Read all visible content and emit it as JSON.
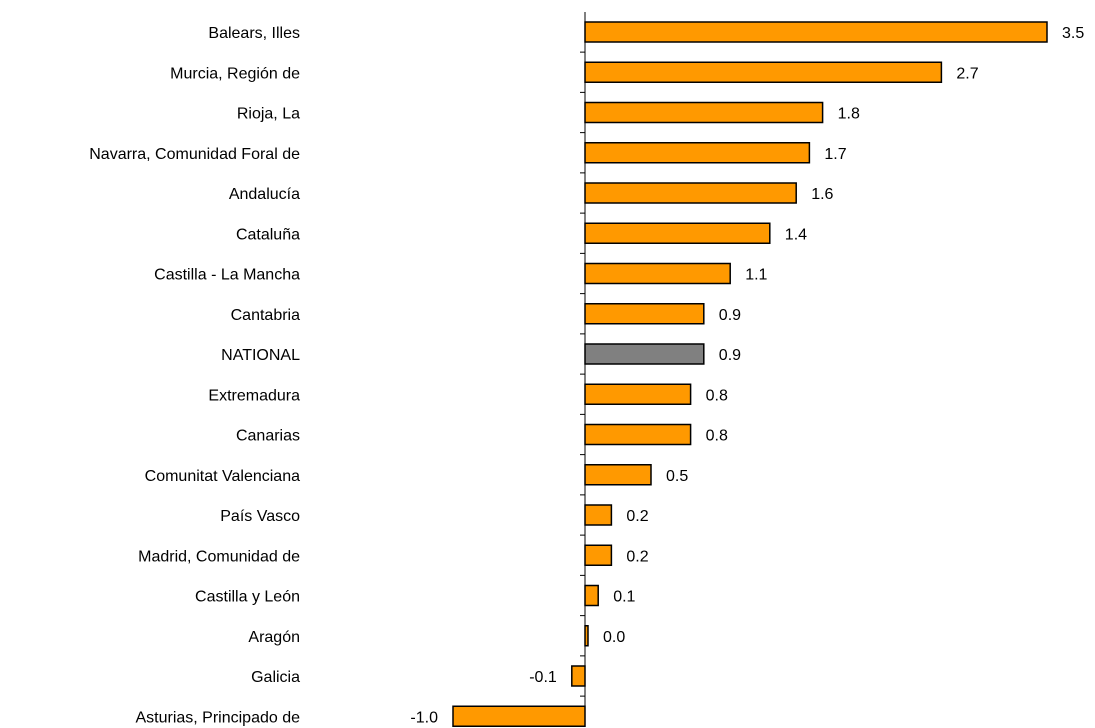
{
  "chart_data": {
    "type": "bar",
    "orientation": "horizontal",
    "categories": [
      "Balears, Illes",
      "Murcia, Región de",
      "Rioja, La",
      "Navarra, Comunidad Foral de",
      "Andalucía",
      "Cataluña",
      "Castilla - La Mancha",
      "Cantabria",
      "NATIONAL",
      "Extremadura",
      "Canarias",
      "Comunitat Valenciana",
      "País Vasco",
      "Madrid, Comunidad de",
      "Castilla y León",
      "Aragón",
      "Galicia",
      "Asturias, Principado de"
    ],
    "values": [
      3.5,
      2.7,
      1.8,
      1.7,
      1.6,
      1.4,
      1.1,
      0.9,
      0.9,
      0.8,
      0.8,
      0.5,
      0.2,
      0.2,
      0.1,
      0.0,
      -0.1,
      -1.0
    ],
    "value_labels": [
      "3.5",
      "2.7",
      "1.8",
      "1.7",
      "1.6",
      "1.4",
      "1.1",
      "0.9",
      "0.9",
      "0.8",
      "0.8",
      "0.5",
      "0.2",
      "0.2",
      "0.1",
      "0.0",
      "-0.1",
      "-1.0"
    ],
    "highlight_category": "NATIONAL",
    "colors": {
      "bar": "#FF9900",
      "highlight": "#808080",
      "outline": "#000000"
    },
    "title": "",
    "xlabel": "",
    "ylabel": "",
    "xlim": [
      -1.2,
      3.5
    ],
    "grid": false,
    "legend": "none"
  }
}
